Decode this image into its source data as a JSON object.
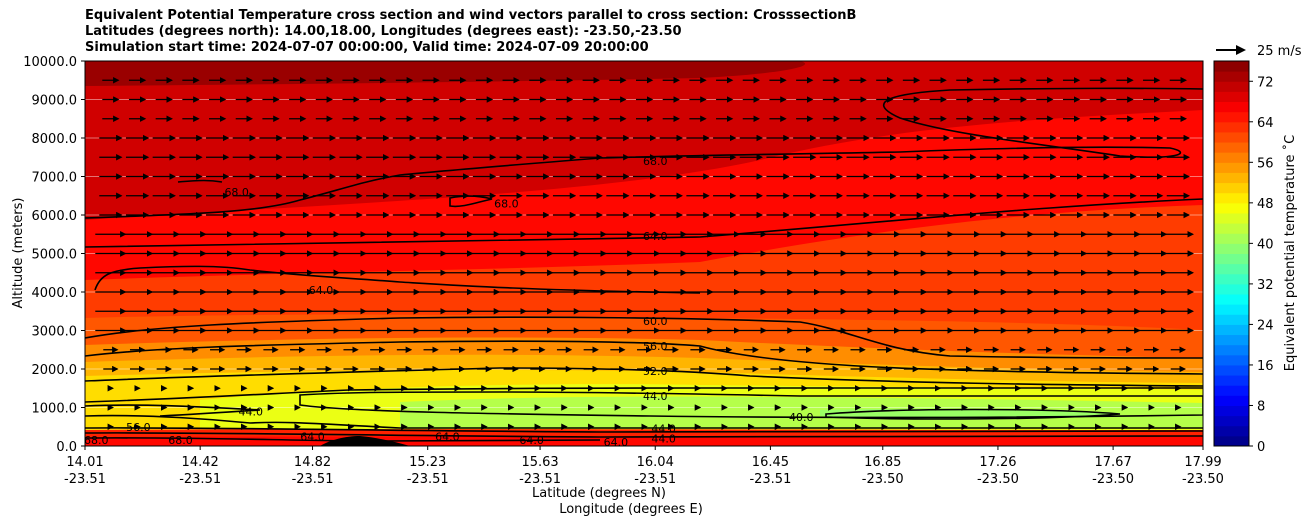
{
  "title": {
    "line1": "Equivalent Potential Temperature cross section and wind vectors parallel to cross section: CrosssectionB",
    "line2": "Latitudes (degrees north): 14.00,18.00, Longitudes (degrees east): -23.50,-23.50",
    "line3": "Simulation start time: 2024-07-07 00:00:00, Valid time: 2024-07-09 20:00:00"
  },
  "chart_data": {
    "type": "contourf",
    "ylabel": "Altitude (meters)",
    "xlabel_lat": "Latitude (degrees N)",
    "xlabel_lon": "Longitude (degrees E)",
    "ylim": [
      0,
      10000
    ],
    "xlim": [
      14.01,
      17.99
    ],
    "yticks": [
      "0.0",
      "1000.0",
      "2000.0",
      "3000.0",
      "4000.0",
      "5000.0",
      "6000.0",
      "7000.0",
      "8000.0",
      "9000.0",
      "10000.0"
    ],
    "xticks": [
      {
        "lat": "14.01",
        "lon": "-23.51"
      },
      {
        "lat": "14.42",
        "lon": "-23.51"
      },
      {
        "lat": "14.82",
        "lon": "-23.51"
      },
      {
        "lat": "15.23",
        "lon": "-23.51"
      },
      {
        "lat": "15.63",
        "lon": "-23.51"
      },
      {
        "lat": "16.04",
        "lon": "-23.51"
      },
      {
        "lat": "16.45",
        "lon": "-23.51"
      },
      {
        "lat": "16.85",
        "lon": "-23.50"
      },
      {
        "lat": "17.26",
        "lon": "-23.50"
      },
      {
        "lat": "17.67",
        "lon": "-23.50"
      },
      {
        "lat": "17.99",
        "lon": "-23.50"
      }
    ],
    "colorbar": {
      "label": "Equivalent potential temperature ˚C",
      "range": [
        0,
        76
      ],
      "ticks": [
        "0",
        "8",
        "16",
        "24",
        "32",
        "40",
        "48",
        "56",
        "64",
        "72"
      ]
    },
    "quiver_key": {
      "label": "25 m/s",
      "speed": 25
    },
    "contour_levels": [
      40.0,
      44.0,
      52.0,
      56.0,
      60.0,
      64.0,
      68.0
    ],
    "contour_labels": [
      {
        "text": "68.0",
        "x": 14.55,
        "y": 6600
      },
      {
        "text": "68.0",
        "x": 15.51,
        "y": 6300
      },
      {
        "text": "68.0",
        "x": 16.04,
        "y": 7400
      },
      {
        "text": "64.0",
        "x": 16.04,
        "y": 5450
      },
      {
        "text": "64.0",
        "x": 14.85,
        "y": 4050
      },
      {
        "text": "60.0",
        "x": 16.04,
        "y": 3250
      },
      {
        "text": "56.0",
        "x": 16.04,
        "y": 2600
      },
      {
        "text": "52.0",
        "x": 16.04,
        "y": 1950
      },
      {
        "text": "44.0",
        "x": 16.04,
        "y": 1300
      },
      {
        "text": "44.0",
        "x": 14.6,
        "y": 900
      },
      {
        "text": "40.0",
        "x": 16.56,
        "y": 750
      },
      {
        "text": "56.0",
        "x": 14.2,
        "y": 500
      },
      {
        "text": "68.0",
        "x": 14.05,
        "y": 150
      },
      {
        "text": "68.0",
        "x": 14.35,
        "y": 150
      },
      {
        "text": "64.0",
        "x": 14.82,
        "y": 250
      },
      {
        "text": "64.0",
        "x": 15.3,
        "y": 250
      },
      {
        "text": "64.0",
        "x": 15.6,
        "y": 150
      },
      {
        "text": "64.0",
        "x": 15.9,
        "y": 100
      },
      {
        "text": "44.0",
        "x": 16.07,
        "y": 450
      },
      {
        "text": "44.0",
        "x": 16.07,
        "y": 200
      }
    ]
  }
}
